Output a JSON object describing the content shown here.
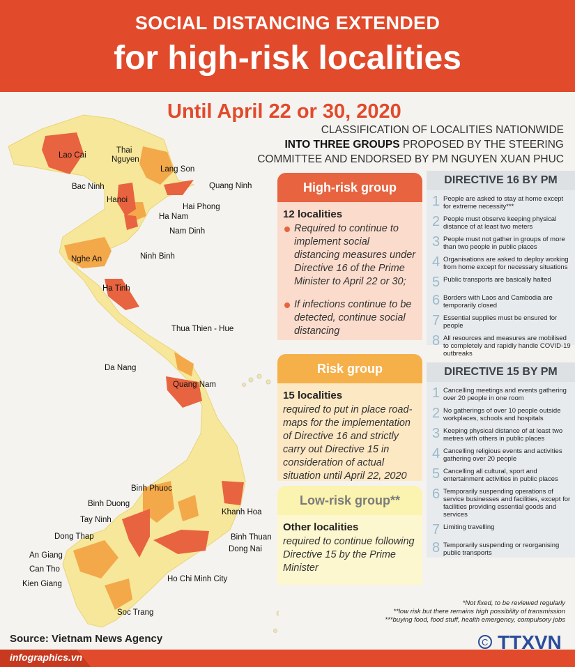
{
  "header": {
    "line1": "SOCIAL DISTANCING EXTENDED",
    "line2": "for high-risk localities"
  },
  "until": "Until April 22 or 30, 2020",
  "classification": {
    "line1": "CLASSIFICATION OF LOCALITIES NATIONWIDE",
    "line2_bold": "INTO THREE GROUPS",
    "line2_rest": " PROPOSED BY THE STEERING",
    "line3": "COMMITTEE AND ENDORSED BY PM NGUYEN XUAN PHUC"
  },
  "colors": {
    "high": "#e8633f",
    "risk": "#f6b04a",
    "low": "#fbf3b0",
    "map_base": "#f6e79a",
    "brand": "#e14a2b"
  },
  "map_labels": [
    "Lao Cai",
    "Thai",
    "Nguyen",
    "Lang Son",
    "Quang  Ninh",
    "Bac Ninh",
    "Hanoi",
    "Hai Phong",
    "Ha Nam",
    "Nam Dinh",
    "Ninh Binh",
    "Nghe An",
    "Ha Tinh",
    "Thua Thien - Hue",
    "Da Nang",
    "Quang Nam",
    "Khanh Hoa",
    "Binh Phuoc",
    "Binh Duong",
    "Tay Ninh",
    "Binh Thuan",
    "Dong Thap",
    "Dong Nai",
    "An Giang",
    "Can Tho",
    "Kien Giang",
    "Ho Chi Minh City",
    "Soc Trang"
  ],
  "groups": {
    "high": {
      "title": "High-risk group",
      "count": "12 localities",
      "bullets": [
        "Required to continue to implement social distancing measures under Directive 16 of the Prime Minister to April 22 or 30;",
        "If infections continue to be detected, continue social distancing"
      ]
    },
    "risk": {
      "title": "Risk group",
      "count": "15 localities",
      "text": "required to put in place road-maps for the implementation of Directive 16 and strictly carry out Directive 15 in consideration of actual situation until April 22, 2020"
    },
    "low": {
      "title": "Low-risk group**",
      "count": "Other localities",
      "text": "required to continue following Directive 15 by the Prime Minister"
    }
  },
  "directive16": {
    "title": "DIRECTIVE 16 BY PM",
    "items": [
      "People are asked to stay at home except for extreme necessity***",
      "People must observe keeping physical distance of at least two meters",
      "People must not gather in groups of more than two people in public places",
      "Organisations are asked to deploy working from home except for necessary situations",
      "Public transports are basically halted",
      "Borders with Laos and Cambodia are temporarily closed",
      "Essential supplies must be ensured for people",
      "All resources and measures are mobilised to completely and rapidly handle COVID-19 outbreaks"
    ]
  },
  "directive15": {
    "title": "DIRECTIVE 15 BY PM",
    "items": [
      "Cancelling meetings and events gathering over 20 people in one room",
      "No gatherings of over 10 people outside workplaces, schools and hospitals",
      "Keeping physical distance of at least two metres with others in public places",
      "Cancelling religious events and activities gathering over 20 people",
      "Cancelling all cultural, sport and entertainment activities in public places",
      "Temporarily suspending operations of service businesses and facilities, except for facilities providing essential goods and services",
      "Limiting travelling",
      "Temporarily suspending or reorganising public transports"
    ]
  },
  "notes": [
    "*Not fixed, to be reviewed regularly",
    "**low risk but there remains high possibility of transmission",
    "***buying food, food stuff, health emergency, compulsory jobs"
  ],
  "source": "Source: Vietnam News Agency",
  "site": "infographics.vn",
  "logo": {
    "text": "TTXVN",
    "sub": "Vietnam News Agency",
    "copyright": "©"
  }
}
